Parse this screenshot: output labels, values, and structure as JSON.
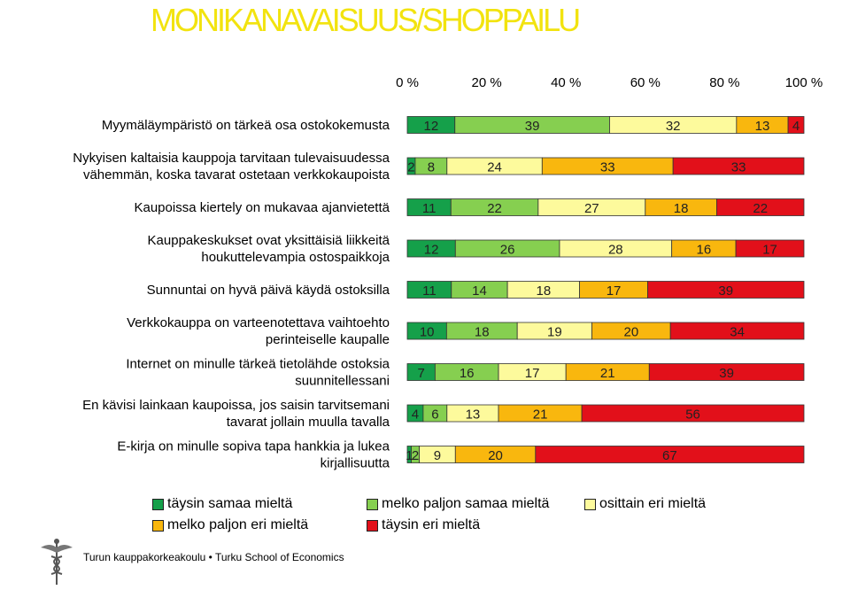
{
  "title": "MONIKANAVAISUUS/SHOPPAILU",
  "footer": "Turun kauppakorkeakoulu • Turku School of Economics",
  "chart_data": {
    "type": "bar",
    "orientation": "horizontal",
    "stacked": true,
    "xlim": [
      0,
      100
    ],
    "x_ticks": [
      "0 %",
      "20 %",
      "40 %",
      "60 %",
      "80 %",
      "100 %"
    ],
    "x_ticks_position": "top",
    "legend_position": "bottom",
    "grid": false,
    "categories": [
      [
        "Myymäläympäristö on tärkeä osa ostokokemusta"
      ],
      [
        "Nykyisen kaltaisia kauppoja tarvitaan tulevaisuudessa",
        "vähemmän, koska tavarat ostetaan verkkokaupoista"
      ],
      [
        "Kaupoissa kiertely on mukavaa ajanvietettä"
      ],
      [
        "Kauppakeskukset ovat yksittäisiä liikkeitä",
        "houkuttelevampia ostospaikkoja"
      ],
      [
        "Sunnuntai on hyvä päivä käydä ostoksilla"
      ],
      [
        "Verkkokauppa on varteenotettava vaihtoehto",
        "perinteiselle kaupalle"
      ],
      [
        "Internet on minulle tärkeä tietolähde ostoksia",
        "suunnitellessani"
      ],
      [
        "En kävisi lainkaan kaupoissa, jos saisin tarvitsemani",
        "tavarat jollain muulla tavalla"
      ],
      [
        "E-kirja on minulle sopiva tapa hankkia ja lukea",
        "kirjallisuutta"
      ]
    ],
    "series": [
      {
        "name": "täysin samaa mieltä",
        "color": "#15a04a",
        "values": [
          12,
          2,
          11,
          12,
          11,
          10,
          7,
          4,
          1
        ]
      },
      {
        "name": "melko paljon samaa mieltä",
        "color": "#86cf50",
        "values": [
          39,
          8,
          22,
          26,
          14,
          18,
          16,
          6,
          2
        ]
      },
      {
        "name": "osittain eri mieltä",
        "color": "#fdfa9c",
        "values": [
          32,
          24,
          27,
          28,
          18,
          19,
          17,
          13,
          9
        ]
      },
      {
        "name": "melko paljon eri mieltä",
        "color": "#f9b70e",
        "values": [
          13,
          33,
          18,
          16,
          17,
          20,
          21,
          21,
          20
        ]
      },
      {
        "name": "täysin eri mieltä",
        "color": "#e2101a",
        "values": [
          4,
          33,
          22,
          17,
          39,
          34,
          39,
          56,
          67
        ]
      }
    ]
  }
}
